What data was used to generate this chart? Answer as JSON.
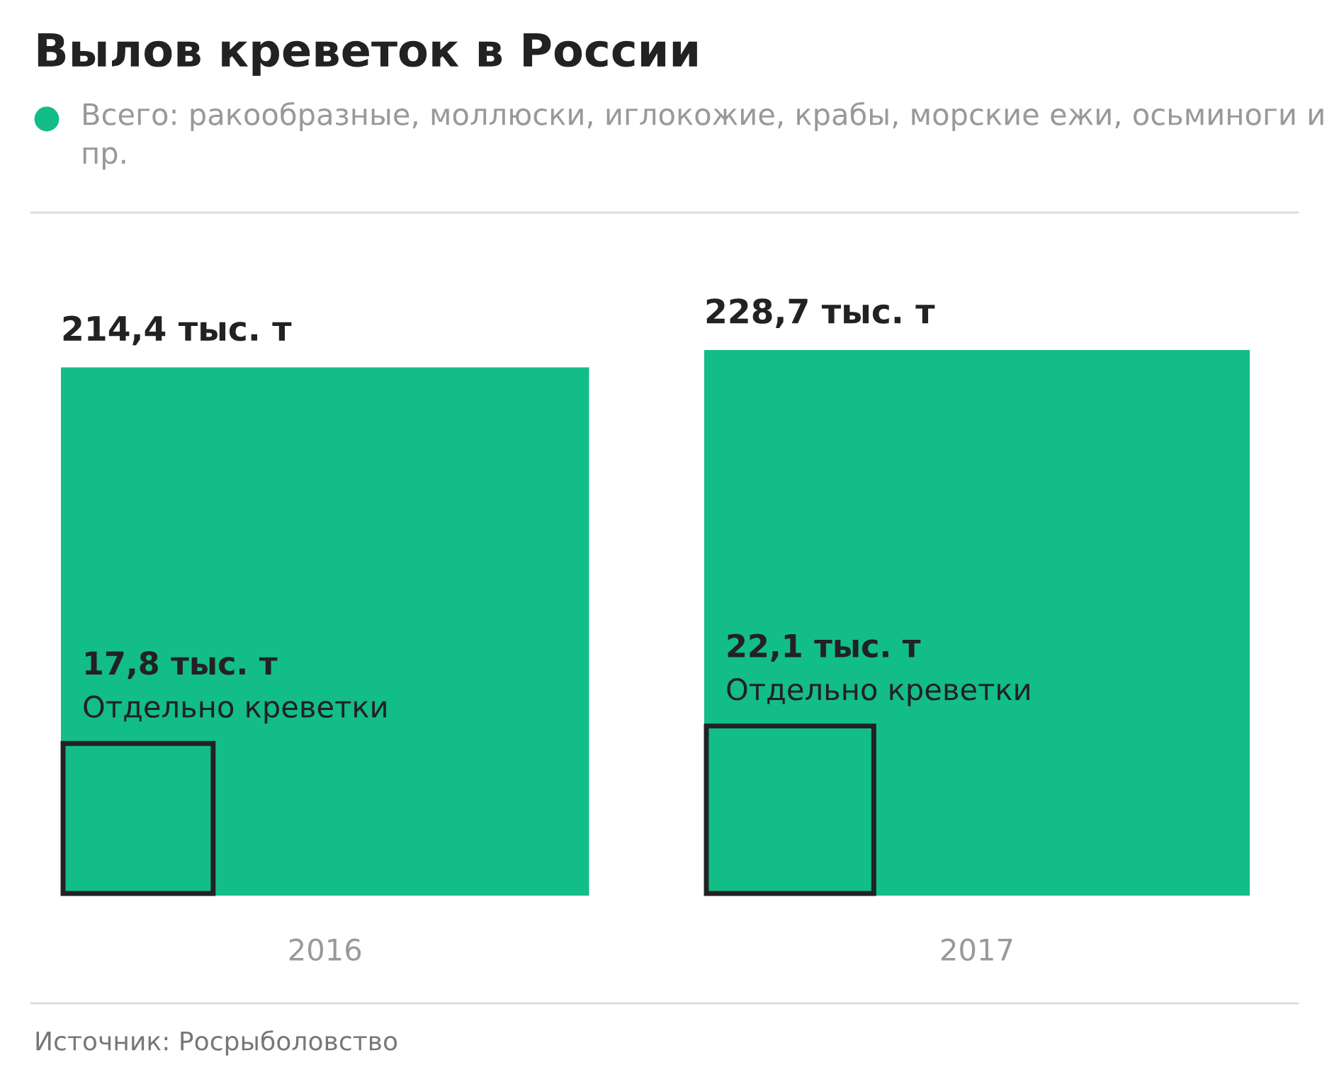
{
  "chart_data": {
    "type": "other",
    "title": "Вылов креветок в России",
    "categories": [
      "2016",
      "2017"
    ],
    "series": [
      {
        "name": "Всего: ракообразные, моллюски, иглокожие, крабы, морские ежи, осьминоги и пр.",
        "color": "#13bd87",
        "values": [
          214.4,
          228.7
        ],
        "value_labels": [
          "214,4 тыс. т",
          "228,7 тыс. т"
        ]
      },
      {
        "name": "Отдельно креветки",
        "color": "#13bd87",
        "values": [
          17.8,
          22.1
        ],
        "value_labels": [
          "17,8 тыс. т",
          "22,1 тыс. т"
        ]
      }
    ],
    "legend": "top left",
    "annotations": [
      "Источник: Росрыболовство"
    ]
  }
}
